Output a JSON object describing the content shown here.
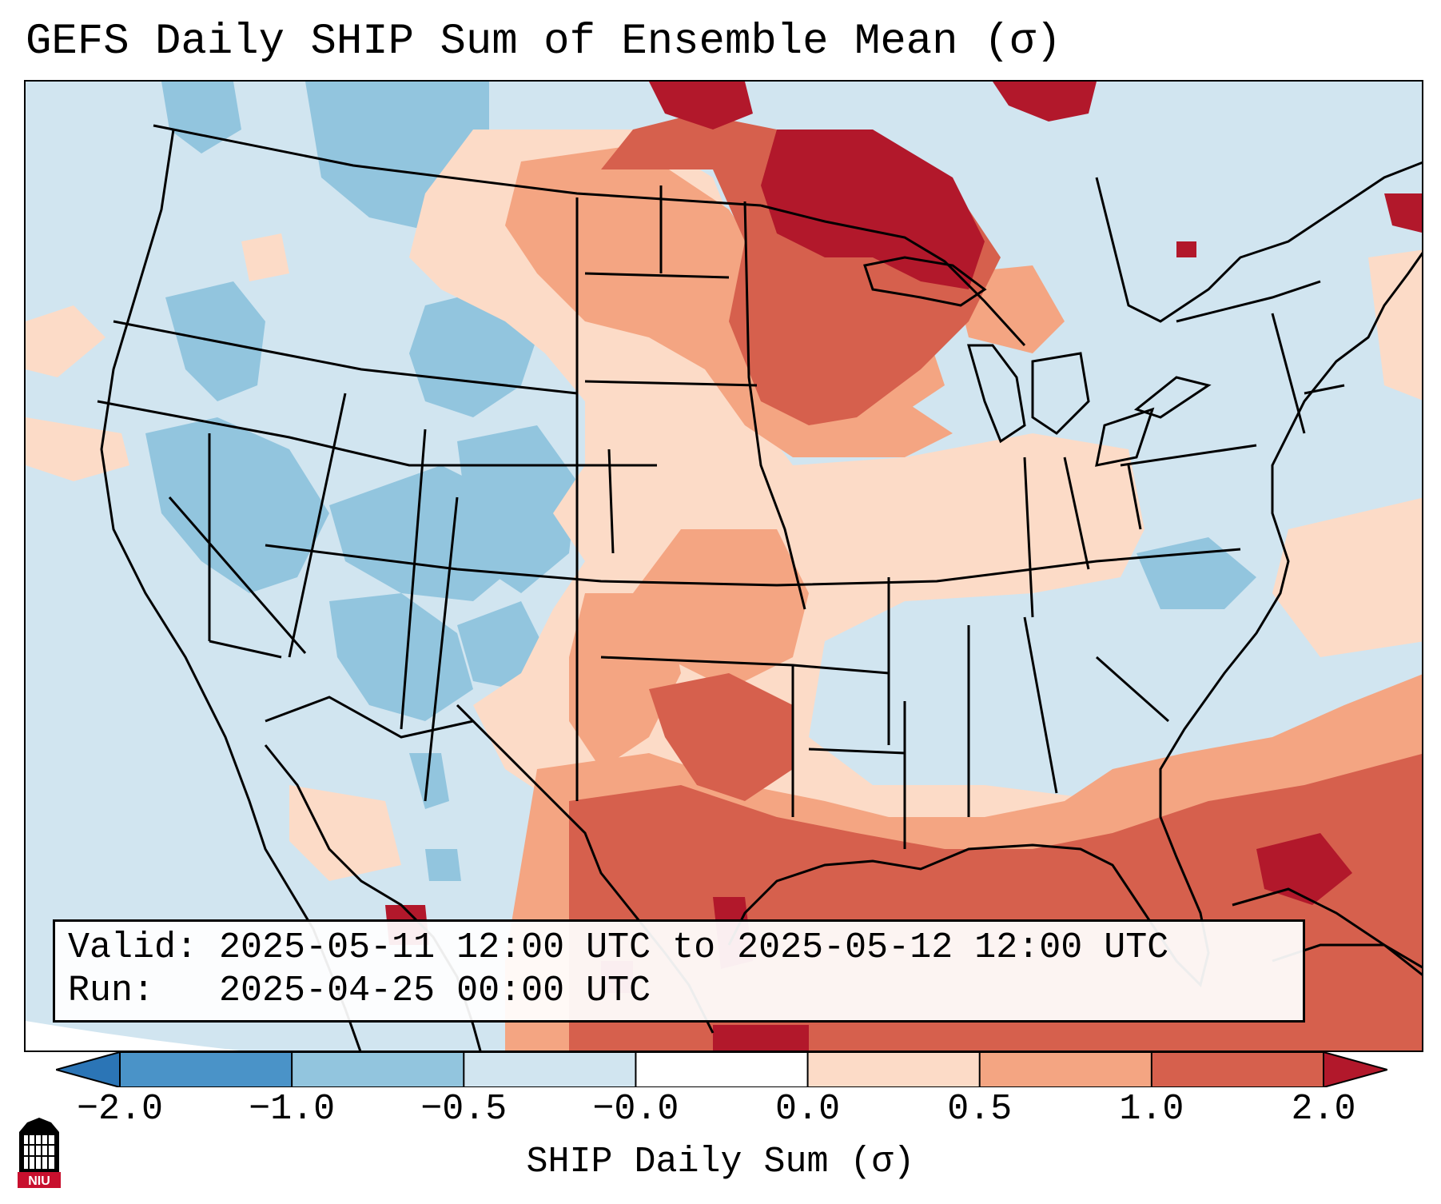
{
  "title": "GEFS Daily SHIP Sum of Ensemble Mean (σ)",
  "info": {
    "valid_label": "Valid:",
    "valid_value": "2025-05-11 12:00 UTC to 2025-05-12 12:00 UTC",
    "run_label": "Run:",
    "run_value": "2025-04-25 00:00 UTC"
  },
  "colorbar": {
    "label": "SHIP Daily Sum (σ)",
    "ticks": [
      "−2.0",
      "−1.0",
      "−0.5",
      "−0.0",
      "0.0",
      "0.5",
      "1.0",
      "2.0"
    ],
    "colors": [
      "#2b75b6",
      "#4a93c8",
      "#92c5de",
      "#d1e5f0",
      "#ffffff",
      "#fcdbc7",
      "#f4a582",
      "#d6604d",
      "#b2182b"
    ],
    "extend": "both"
  },
  "map": {
    "region": "Contiguous United States, southern Canada, northern Mexico, Gulf of Mexico",
    "projection": "Lambert conformal"
  },
  "logo": {
    "text": "NIU",
    "colors": [
      "#c8102e",
      "#000000"
    ]
  },
  "colors": {
    "background": "#ffffff",
    "frame": "#000000",
    "ocean_default": "#d1e5f0"
  }
}
